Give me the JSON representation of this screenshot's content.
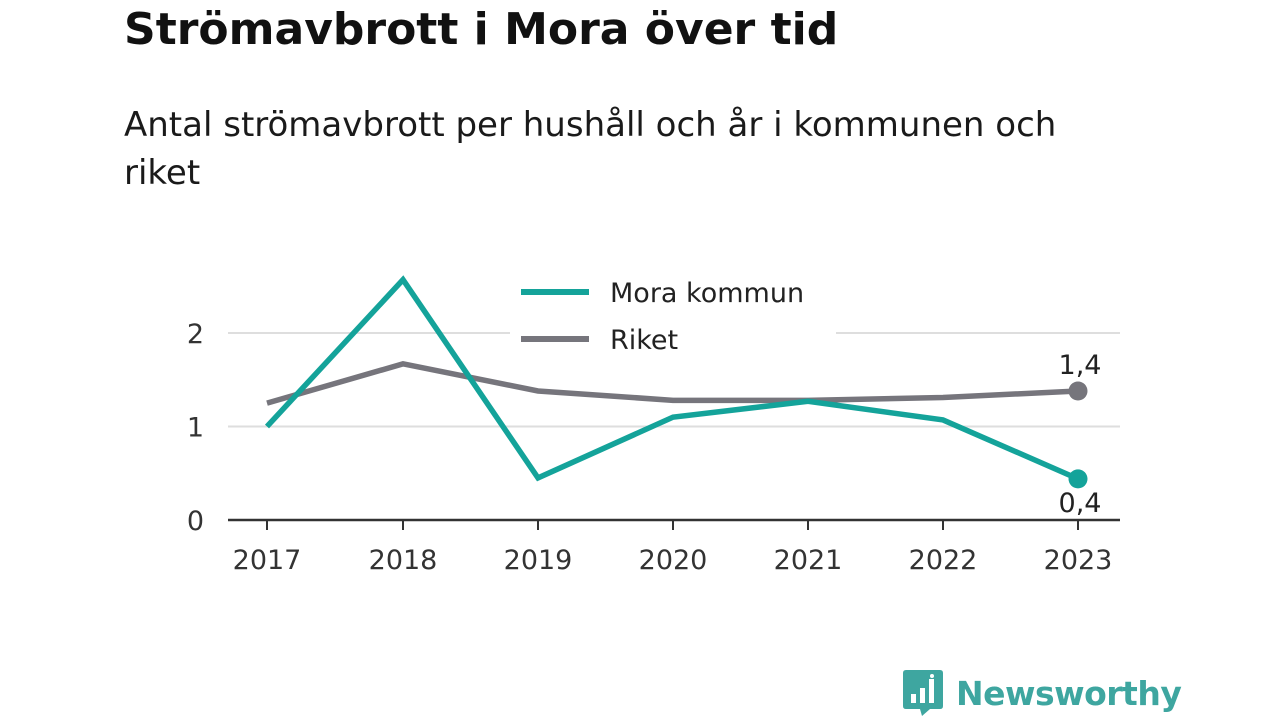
{
  "header": {
    "title": "Strömavbrott i Mora över tid",
    "subtitle": "Antal strömavbrott per hushåll och år i kommunen och riket"
  },
  "brand": {
    "name": "Newsworthy",
    "icon": "bar-chart-speech-bubble-icon",
    "color": "#3ea6a0"
  },
  "chart_data": {
    "type": "line",
    "title": "Strömavbrott i Mora över tid",
    "subtitle": "Antal strömavbrott per hushåll och år i kommunen och riket",
    "x": [
      "2017",
      "2018",
      "2019",
      "2020",
      "2021",
      "2022",
      "2023"
    ],
    "y_ticks": [
      "0",
      "1",
      "2"
    ],
    "ylim": [
      0,
      2.6
    ],
    "grid": true,
    "legend_position": "top-center",
    "series": [
      {
        "name": "Mora kommun",
        "color": "#14a39a",
        "values": [
          1.0,
          2.57,
          0.45,
          1.1,
          1.27,
          1.07,
          0.44
        ],
        "end_label": "0,4"
      },
      {
        "name": "Riket",
        "color": "#76757c",
        "values": [
          1.25,
          1.67,
          1.38,
          1.28,
          1.28,
          1.31,
          1.38
        ],
        "end_label": "1,4"
      }
    ]
  }
}
